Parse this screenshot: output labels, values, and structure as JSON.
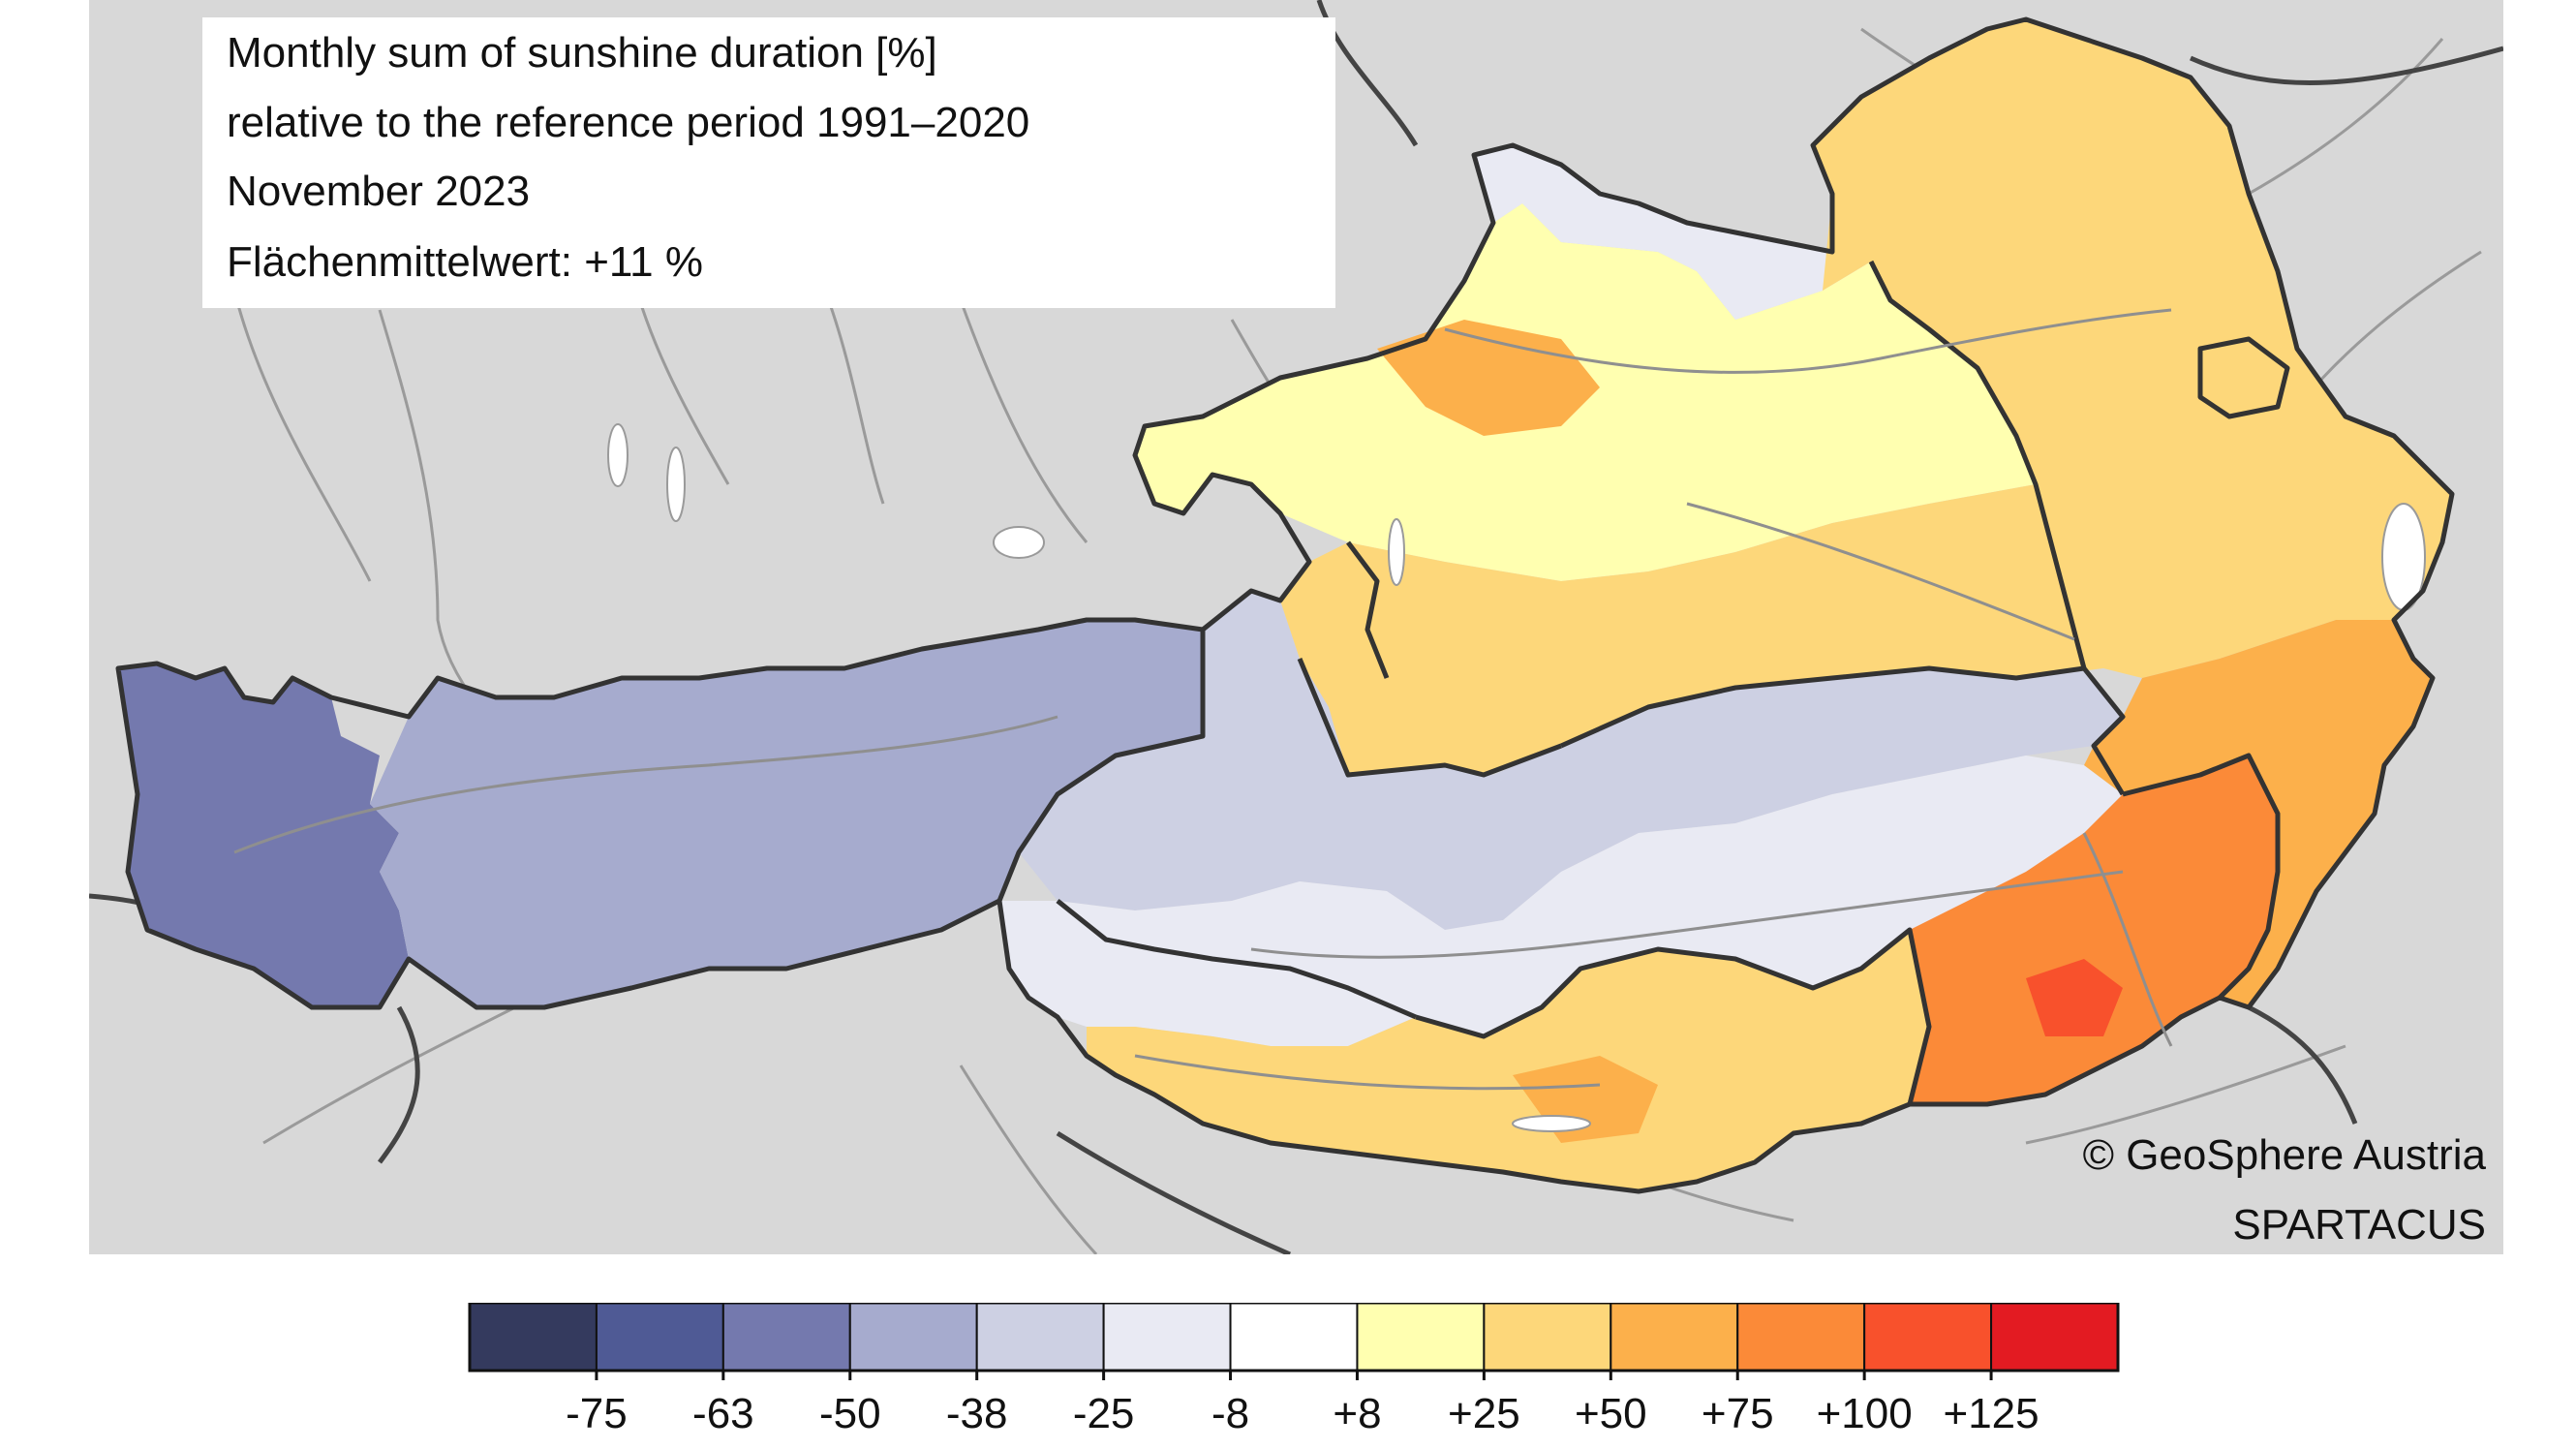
{
  "title": {
    "line1": "Monthly sum of sunshine duration [%]",
    "line2": "relative to the reference period 1991–2020",
    "line3": "November 2023",
    "line4": "Flächenmittelwert: +11 %"
  },
  "credits": {
    "copyright": "© GeoSphere Austria",
    "dataset": "SPARTACUS"
  },
  "map": {
    "background_color": "#d8d8d8",
    "outside_line_color": "#9a9a9a",
    "border_color": "#333333",
    "lake_color": "#ffffff",
    "regions": [
      {
        "name": "tirol-west",
        "class_value": -50
      },
      {
        "name": "tirol-centre",
        "class_value": -38
      },
      {
        "name": "salzburg-alps",
        "class_value": -25
      },
      {
        "name": "upper-styria",
        "class_value": -8
      },
      {
        "name": "alpine-foreland",
        "class_value": 25
      },
      {
        "name": "muehlviertel-north",
        "class_value": -8
      },
      {
        "name": "lower-austria-east",
        "class_value": 25
      },
      {
        "name": "carinthia",
        "class_value": 25
      },
      {
        "name": "upper-carinthia",
        "class_value": -8
      },
      {
        "name": "styria-south",
        "class_value": 75
      },
      {
        "name": "burgenland-south",
        "class_value": 50
      }
    ]
  },
  "legend": {
    "colors": [
      "#343a5e",
      "#4f5a95",
      "#7479ae",
      "#a6abce",
      "#cdd0e3",
      "#e9eaf3",
      "#ffffff",
      "#ffffb0",
      "#fdd77a",
      "#fcb04b",
      "#fb8a38",
      "#f8512c",
      "#e31b22"
    ],
    "tick_labels": [
      "-75",
      "-63",
      "-50",
      "-38",
      "-25",
      "-8",
      "+8",
      "+25",
      "+50",
      "+75",
      "+100",
      "+125"
    ]
  }
}
